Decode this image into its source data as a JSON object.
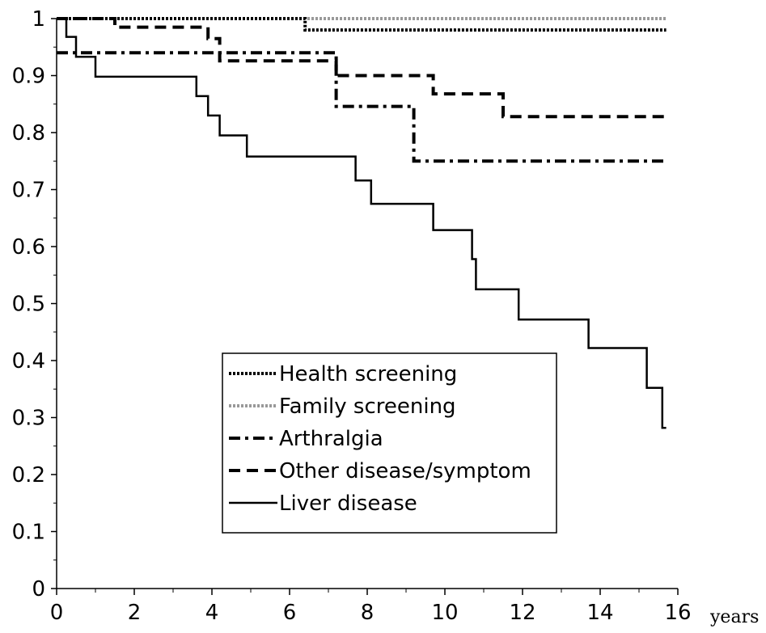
{
  "chart_data": {
    "type": "line",
    "title": "",
    "xlabel": "years",
    "ylabel": "",
    "xlim": [
      0,
      16
    ],
    "ylim": [
      0,
      1
    ],
    "x_ticks": [
      "0",
      "2",
      "4",
      "6",
      "8",
      "10",
      "12",
      "14",
      "16"
    ],
    "y_ticks": [
      "0",
      "0.1",
      "0.2",
      "0.3",
      "0.4",
      "0.5",
      "0.6",
      "0.7",
      "0.8",
      "0.9",
      "1"
    ],
    "x_tick_values": [
      0,
      2,
      4,
      6,
      8,
      10,
      12,
      14,
      16
    ],
    "y_tick_values": [
      0,
      0.1,
      0.2,
      0.3,
      0.4,
      0.5,
      0.6,
      0.7,
      0.8,
      0.9,
      1.0
    ],
    "grid": false,
    "legend_position": "bottom-center",
    "series": [
      {
        "name": "Health screening",
        "style": "dotted",
        "color": "#000000",
        "x": [
          0,
          6.4,
          6.4,
          15.7
        ],
        "y": [
          1.0,
          1.0,
          0.98,
          0.98
        ]
      },
      {
        "name": "Family screening",
        "style": "dotted",
        "color": "#999999",
        "x": [
          0,
          15.7
        ],
        "y": [
          1.0,
          1.0
        ]
      },
      {
        "name": "Arthralgia",
        "style": "dashdot",
        "color": "#000000",
        "x": [
          0,
          0.1,
          0.1,
          7.2,
          7.2,
          9.2,
          9.2,
          15.7
        ],
        "y": [
          0.94,
          0.94,
          0.94,
          0.94,
          0.846,
          0.846,
          0.75,
          0.75
        ]
      },
      {
        "name": "Other disease/symptom",
        "style": "dashed",
        "color": "#000000",
        "x": [
          0,
          1.5,
          1.5,
          3.9,
          3.9,
          4.2,
          4.2,
          7.2,
          7.2,
          9.7,
          9.7,
          11.5,
          11.5,
          15.7
        ],
        "y": [
          1.0,
          1.0,
          0.985,
          0.985,
          0.965,
          0.965,
          0.926,
          0.926,
          0.9,
          0.9,
          0.868,
          0.868,
          0.828,
          0.828
        ]
      },
      {
        "name": "Liver disease",
        "style": "solid",
        "color": "#000000",
        "x": [
          0,
          0.25,
          0.25,
          0.5,
          0.5,
          1.0,
          1.0,
          3.6,
          3.6,
          3.9,
          3.9,
          4.2,
          4.2,
          4.9,
          4.9,
          7.7,
          7.7,
          8.1,
          8.1,
          9.7,
          9.7,
          10.7,
          10.7,
          10.8,
          10.8,
          11.9,
          11.9,
          13.7,
          13.7,
          15.2,
          15.2,
          15.6,
          15.6,
          15.7
        ],
        "y": [
          1.0,
          1.0,
          0.968,
          0.968,
          0.933,
          0.933,
          0.898,
          0.898,
          0.864,
          0.864,
          0.83,
          0.83,
          0.795,
          0.795,
          0.758,
          0.758,
          0.716,
          0.716,
          0.675,
          0.675,
          0.629,
          0.629,
          0.578,
          0.578,
          0.525,
          0.525,
          0.472,
          0.472,
          0.422,
          0.422,
          0.352,
          0.352,
          0.282,
          0.282
        ]
      }
    ]
  }
}
